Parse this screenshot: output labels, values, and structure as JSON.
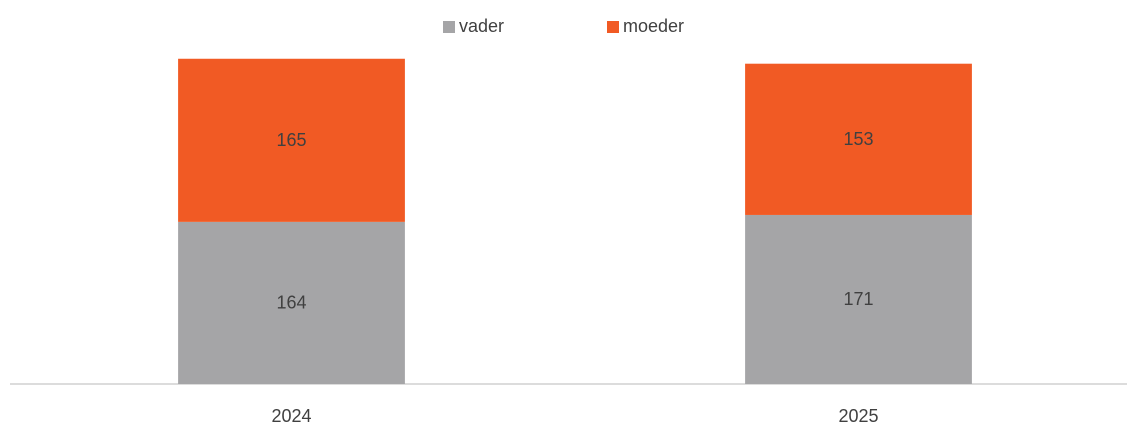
{
  "chart_data": {
    "type": "stacked_bar",
    "categories": [
      "2024",
      "2025"
    ],
    "series": [
      {
        "name": "vader",
        "color": "#a5a5a7",
        "values": [
          164,
          171
        ]
      },
      {
        "name": "moeder",
        "color": "#f15a24",
        "values": [
          165,
          153
        ]
      }
    ],
    "ylim": [
      0,
      350
    ],
    "legend": "top"
  }
}
